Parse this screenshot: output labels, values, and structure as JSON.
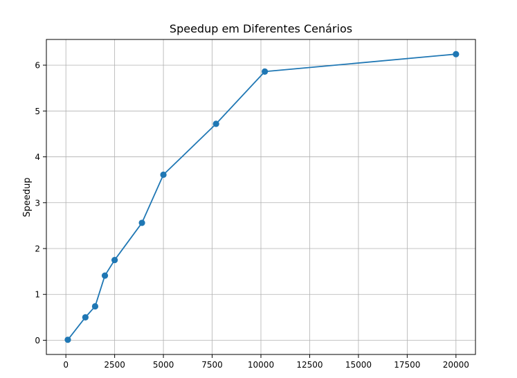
{
  "chart_data": {
    "type": "line",
    "title": "Speedup em Diferentes Cenários",
    "xlabel": "",
    "ylabel": "Speedup",
    "xlim": [
      -1000,
      21000
    ],
    "ylim": [
      -0.31,
      6.56
    ],
    "xticks": [
      0,
      2500,
      5000,
      7500,
      10000,
      12500,
      15000,
      17500,
      20000
    ],
    "yticks": [
      0,
      1,
      2,
      3,
      4,
      5,
      6
    ],
    "grid": true,
    "series": [
      {
        "color": "#1f77b4",
        "marker": "circle",
        "x": [
          100,
          1000,
          1500,
          2000,
          2500,
          3900,
          5000,
          7700,
          10200,
          20000
        ],
        "y": [
          0.01,
          0.5,
          0.74,
          1.41,
          1.75,
          2.56,
          3.61,
          4.72,
          5.86,
          6.24
        ]
      }
    ]
  }
}
